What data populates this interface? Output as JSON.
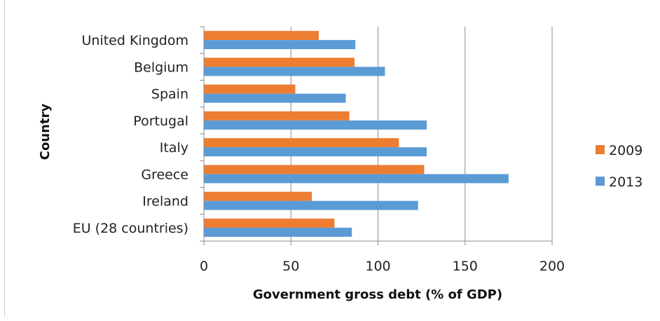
{
  "chart_data": {
    "type": "bar",
    "orientation": "horizontal",
    "title": "",
    "xlabel": "Government gross debt (% of GDP)",
    "ylabel": "Country",
    "xlim": [
      0,
      200
    ],
    "xticks": [
      0,
      50,
      100,
      150,
      200
    ],
    "grid": true,
    "legend_position": "right",
    "categories": [
      "United Kingdom",
      "Belgium",
      "Spain",
      "Portugal",
      "Italy",
      "Greece",
      "Ireland",
      "EU (28 countries)"
    ],
    "series": [
      {
        "name": "2009",
        "color": "#ED7D31",
        "values": [
          66,
          86.5,
          52.5,
          83.5,
          112,
          126.5,
          62,
          75
        ]
      },
      {
        "name": "2013",
        "color": "#5B9BD5",
        "values": [
          87,
          104,
          81.5,
          128,
          128,
          175,
          123,
          85
        ]
      }
    ]
  }
}
